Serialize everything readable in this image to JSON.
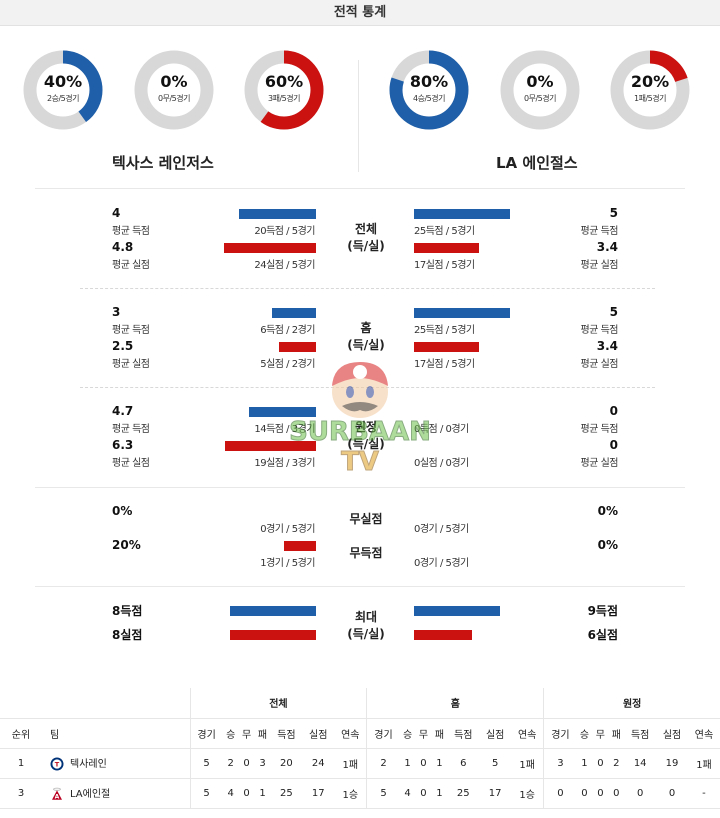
{
  "header": {
    "title": "전적 통계"
  },
  "donuts": {
    "left": [
      {
        "pct": "40%",
        "sub": "2승/5경기",
        "fraction": 0.4,
        "color": "#1f5fa9"
      },
      {
        "pct": "0%",
        "sub": "0무/5경기",
        "fraction": 0.0,
        "color": "#1f5fa9"
      },
      {
        "pct": "60%",
        "sub": "3패/5경기",
        "fraction": 0.6,
        "color": "#cc1111"
      }
    ],
    "right": [
      {
        "pct": "80%",
        "sub": "4승/5경기",
        "fraction": 0.8,
        "color": "#1f5fa9"
      },
      {
        "pct": "0%",
        "sub": "0무/5경기",
        "fraction": 0.0,
        "color": "#1f5fa9"
      },
      {
        "pct": "20%",
        "sub": "1패/5경기",
        "fraction": 0.2,
        "color": "#cc1111"
      }
    ],
    "track_color": "#d8d8d8"
  },
  "teams": {
    "left": "텍사스 레인저스",
    "right": "LA 에인절스"
  },
  "sections": {
    "total": {
      "label1": "전체",
      "label2": "(득/실)",
      "left_scored": "4",
      "left_scored_lab": "평균 득점",
      "left_allowed": "4.8",
      "left_allowed_lab": "평균 실점",
      "left_bar1": "20득점 / 5경기",
      "left_bar1_value": 20,
      "left_bar2": "24실점 / 5경기",
      "left_bar2_value": 24,
      "right_scored": "5",
      "right_scored_lab": "평균 득점",
      "right_allowed": "3.4",
      "right_allowed_lab": "평균 실점",
      "right_bar1": "25득점 / 5경기",
      "right_bar1_value": 25,
      "right_bar2": "17실점 / 5경기",
      "right_bar2_value": 17
    },
    "home": {
      "label1": "홈",
      "label2": "(득/실)",
      "left_scored": "3",
      "left_scored_lab": "평균 득점",
      "left_allowed": "2.5",
      "left_allowed_lab": "평균 실점",
      "left_bar1": "6득점 / 2경기",
      "left_bar1_value": 6,
      "left_bar2": "5실점 / 2경기",
      "left_bar2_value": 5,
      "right_scored": "5",
      "right_scored_lab": "평균 득점",
      "right_allowed": "3.4",
      "right_allowed_lab": "평균 실점",
      "right_bar1": "25득점 / 5경기",
      "right_bar1_value": 25,
      "right_bar2": "17실점 / 5경기",
      "right_bar2_value": 17
    },
    "away": {
      "label1": "원정",
      "label2": "(득/실)",
      "left_scored": "4.7",
      "left_scored_lab": "평균 득점",
      "left_allowed": "6.3",
      "left_allowed_lab": "평균 실점",
      "left_bar1": "14득점 / 3경기",
      "left_bar1_value": 14,
      "left_bar2": "19실점 / 3경기",
      "left_bar2_value": 19,
      "right_scored": "0",
      "right_scored_lab": "평균 득점",
      "right_allowed": "0",
      "right_allowed_lab": "평균 실점",
      "right_bar1": "0득점 / 0경기",
      "right_bar1_value": 0,
      "right_bar2": "0실점 / 0경기",
      "right_bar2_value": 0
    },
    "shutout": {
      "label1": "무실점",
      "label2": "무득점",
      "left_pct1": "0%",
      "left_bar1": "0경기 / 5경기",
      "left_bar1_value": 0,
      "left_pct2": "20%",
      "left_bar2": "1경기 / 5경기",
      "left_bar2_value": 1,
      "right_pct1": "0%",
      "right_bar1": "0경기 / 5경기",
      "right_bar1_value": 0,
      "right_pct2": "0%",
      "right_bar2": "0경기 / 5경기",
      "right_bar2_value": 0
    },
    "max": {
      "label1": "최대",
      "label2": "(득/실)",
      "left_scored": "8득점",
      "left_bar1_value": 8,
      "left_allowed": "8실점",
      "left_bar2_value": 8,
      "right_scored": "9득점",
      "right_bar1_value": 9,
      "right_allowed": "6실점",
      "right_bar2_value": 6
    }
  },
  "watermark": {
    "line1": "SURBAAN",
    "line2": "TV"
  },
  "standings": {
    "groups": [
      "전체",
      "홈",
      "원정"
    ],
    "cols": [
      "순위",
      "팀",
      "경기",
      "승",
      "무",
      "패",
      "득점",
      "실점",
      "연속"
    ],
    "rows": [
      {
        "rank": "1",
        "team": "텍사레인",
        "logo": "texas-logo",
        "total": [
          "5",
          "2",
          "0",
          "3",
          "20",
          "24",
          "1패"
        ],
        "home": [
          "2",
          "1",
          "0",
          "1",
          "6",
          "5",
          "1패"
        ],
        "away": [
          "3",
          "1",
          "0",
          "2",
          "14",
          "19",
          "1패"
        ]
      },
      {
        "rank": "3",
        "team": "LA에인절",
        "logo": "angels-logo",
        "total": [
          "5",
          "4",
          "0",
          "1",
          "25",
          "17",
          "1승"
        ],
        "home": [
          "5",
          "4",
          "0",
          "1",
          "25",
          "17",
          "1승"
        ],
        "away": [
          "0",
          "0",
          "0",
          "0",
          "0",
          "0",
          "-"
        ]
      }
    ]
  }
}
